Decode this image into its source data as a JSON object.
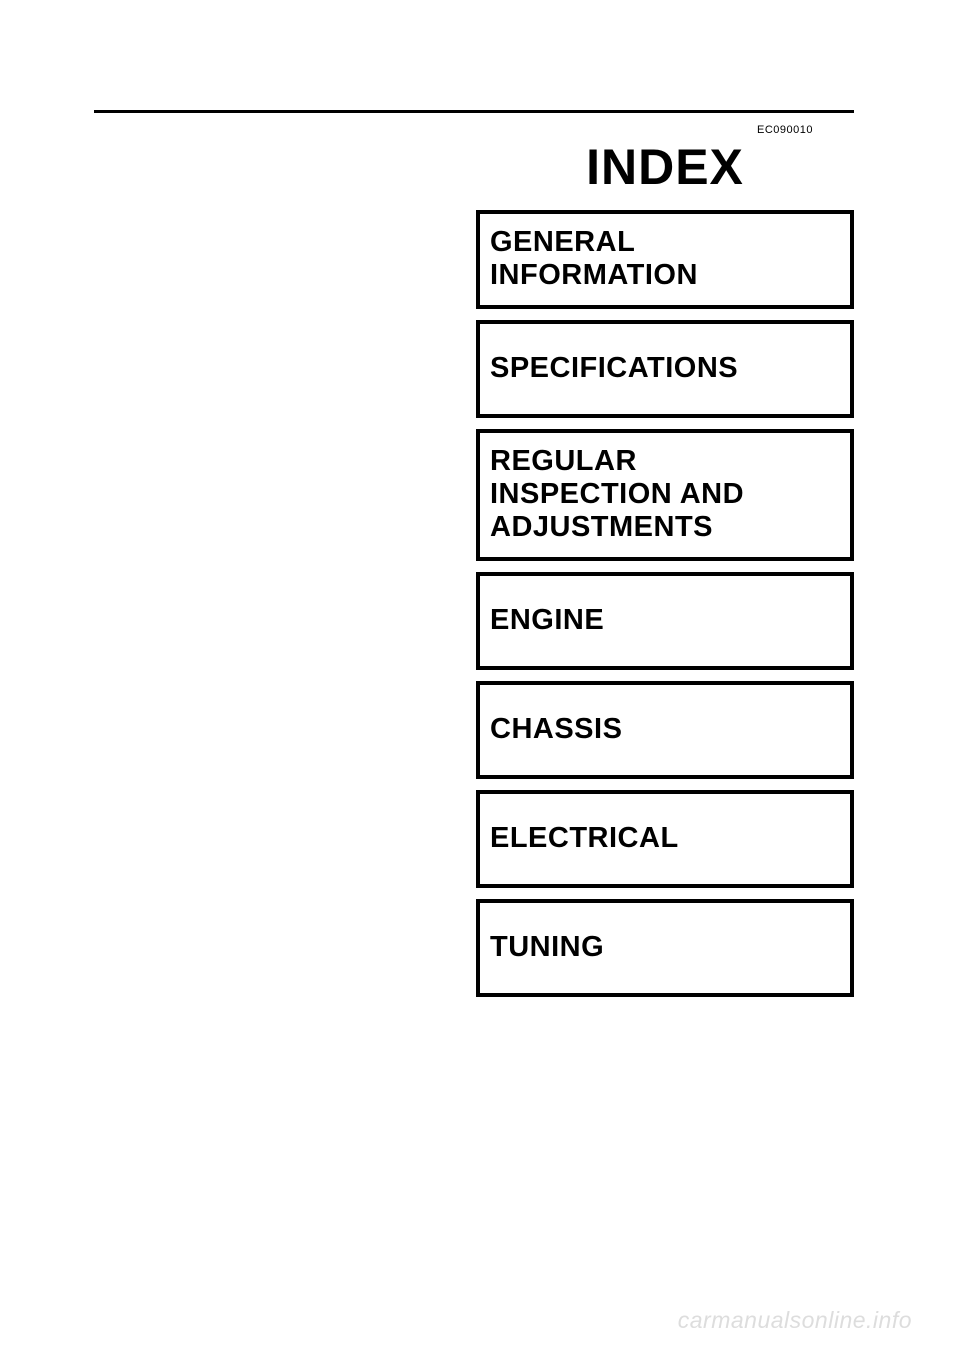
{
  "page": {
    "doc_code": "EC090010",
    "title": "INDEX",
    "watermark": "carmanualsonline.info",
    "background_color": "#ffffff",
    "text_color": "#000000",
    "watermark_color": "#dddddd",
    "rule_color": "#000000",
    "box_border_width": 4,
    "title_fontsize": 50,
    "section_fontsize": 29,
    "doc_code_fontsize": 11
  },
  "sections": [
    {
      "label": "GENERAL INFORMATION",
      "lines": [
        "GENERAL",
        "INFORMATION"
      ]
    },
    {
      "label": "SPECIFICATIONS",
      "lines": [
        "SPECIFICATIONS"
      ]
    },
    {
      "label": "REGULAR INSPECTION AND ADJUSTMENTS",
      "lines": [
        "REGULAR",
        "INSPECTION AND",
        "ADJUSTMENTS"
      ]
    },
    {
      "label": "ENGINE",
      "lines": [
        "ENGINE"
      ]
    },
    {
      "label": "CHASSIS",
      "lines": [
        "CHASSIS"
      ]
    },
    {
      "label": "ELECTRICAL",
      "lines": [
        "ELECTRICAL"
      ]
    },
    {
      "label": "TUNING",
      "lines": [
        "TUNING"
      ]
    }
  ]
}
